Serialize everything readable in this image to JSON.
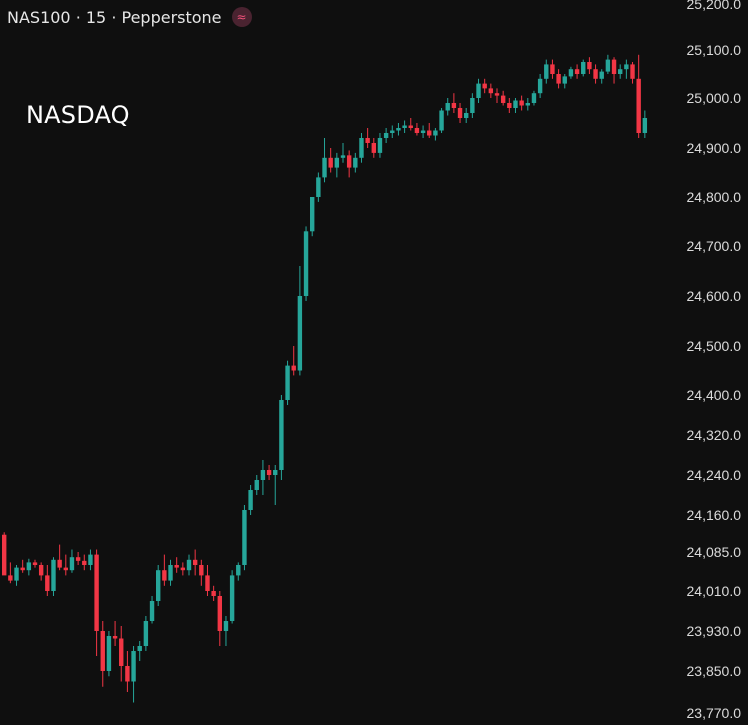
{
  "header": {
    "symbol_title": "NAS100 · 15 · Pepperstone",
    "badge_glyph": "≈"
  },
  "watermark": "NASDAQ",
  "colors": {
    "up": "#26a69a",
    "down": "#f23645",
    "background": "#0f0f0f",
    "axis_text": "#dbdbdb"
  },
  "chart_data": {
    "type": "candlestick",
    "title": "NAS100 · 15 · Pepperstone",
    "annotation": "NASDAQ",
    "y_axis": {
      "position": "right",
      "ticks": [
        "25,200.0",
        "25,100.0",
        "25,000.0",
        "24,900.0",
        "24,800.0",
        "24,700.0",
        "24,600.0",
        "24,500.0",
        "24,400.0",
        "24,320.0",
        "24,240.0",
        "24,160.0",
        "24,085.0",
        "24,010.0",
        "23,930.0",
        "23,850.0",
        "23,770.0"
      ],
      "tick_values": [
        25200,
        25100,
        25000,
        24900,
        24800,
        24700,
        24600,
        24500,
        24400,
        24320,
        24240,
        24160,
        24085,
        24010,
        23930,
        23850,
        23770
      ],
      "scale": "log"
    },
    "grid": false,
    "candles": [
      [
        24120,
        24125,
        24045,
        24040
      ],
      [
        24040,
        24065,
        24025,
        24030
      ],
      [
        24030,
        24060,
        24020,
        24055
      ],
      [
        24055,
        24070,
        24045,
        24050
      ],
      [
        24050,
        24072,
        24040,
        24065
      ],
      [
        24065,
        24070,
        24055,
        24060
      ],
      [
        24060,
        24065,
        24030,
        24040
      ],
      [
        24040,
        24060,
        24000,
        24010
      ],
      [
        24010,
        24075,
        24000,
        24070
      ],
      [
        24070,
        24100,
        24050,
        24055
      ],
      [
        24055,
        24080,
        24040,
        24050
      ],
      [
        24050,
        24090,
        24045,
        24075
      ],
      [
        24075,
        24085,
        24060,
        24068
      ],
      [
        24068,
        24080,
        24050,
        24060
      ],
      [
        24060,
        24090,
        24050,
        24080
      ],
      [
        24080,
        24090,
        23880,
        23930
      ],
      [
        23930,
        23950,
        23820,
        23850
      ],
      [
        23850,
        23930,
        23840,
        23920
      ],
      [
        23920,
        23950,
        23900,
        23915
      ],
      [
        23915,
        23940,
        23830,
        23860
      ],
      [
        23860,
        23890,
        23810,
        23830
      ],
      [
        23830,
        23900,
        23790,
        23890
      ],
      [
        23890,
        23910,
        23870,
        23900
      ],
      [
        23900,
        23960,
        23890,
        23950
      ],
      [
        23950,
        24000,
        23945,
        23990
      ],
      [
        23990,
        24060,
        23980,
        24050
      ],
      [
        24050,
        24080,
        24020,
        24030
      ],
      [
        24030,
        24070,
        24020,
        24060
      ],
      [
        24060,
        24075,
        24045,
        24055
      ],
      [
        24055,
        24065,
        24040,
        24050
      ],
      [
        24050,
        24080,
        24040,
        24070
      ],
      [
        24070,
        24090,
        24040,
        24060
      ],
      [
        24060,
        24070,
        24020,
        24040
      ],
      [
        24040,
        24060,
        24000,
        24010
      ],
      [
        24010,
        24020,
        23990,
        24000
      ],
      [
        24000,
        24010,
        23900,
        23930
      ],
      [
        23930,
        23960,
        23900,
        23950
      ],
      [
        23950,
        24050,
        23945,
        24040
      ],
      [
        24040,
        24065,
        24030,
        24060
      ],
      [
        24060,
        24180,
        24050,
        24170
      ],
      [
        24170,
        24220,
        24160,
        24210
      ],
      [
        24210,
        24240,
        24200,
        24230
      ],
      [
        24230,
        24270,
        24200,
        24250
      ],
      [
        24250,
        24260,
        24230,
        24240
      ],
      [
        24240,
        24260,
        24180,
        24250
      ],
      [
        24250,
        24400,
        24230,
        24390
      ],
      [
        24390,
        24470,
        24380,
        24460
      ],
      [
        24460,
        24500,
        24440,
        24450
      ],
      [
        24450,
        24660,
        24440,
        24600
      ],
      [
        24600,
        24740,
        24590,
        24730
      ],
      [
        24730,
        24800,
        24720,
        24800
      ],
      [
        24800,
        24850,
        24790,
        24840
      ],
      [
        24840,
        24920,
        24830,
        24880
      ],
      [
        24880,
        24900,
        24850,
        24860
      ],
      [
        24860,
        24890,
        24840,
        24880
      ],
      [
        24880,
        24910,
        24870,
        24885
      ],
      [
        24885,
        24895,
        24840,
        24860
      ],
      [
        24860,
        24890,
        24850,
        24880
      ],
      [
        24880,
        24930,
        24870,
        24920
      ],
      [
        24920,
        24940,
        24900,
        24910
      ],
      [
        24910,
        24920,
        24880,
        24890
      ],
      [
        24890,
        24930,
        24880,
        24920
      ],
      [
        24920,
        24940,
        24910,
        24930
      ],
      [
        24930,
        24945,
        24920,
        24935
      ],
      [
        24935,
        24950,
        24925,
        24940
      ],
      [
        24940,
        24955,
        24930,
        24945
      ],
      [
        24945,
        24960,
        24935,
        24940
      ],
      [
        24940,
        24950,
        24925,
        24930
      ],
      [
        24930,
        24945,
        24920,
        24935
      ],
      [
        24935,
        24950,
        24920,
        24925
      ],
      [
        24925,
        24940,
        24915,
        24935
      ],
      [
        24935,
        24980,
        24930,
        24975
      ],
      [
        24975,
        25000,
        24965,
        24990
      ],
      [
        24990,
        25010,
        24970,
        24980
      ],
      [
        24980,
        24990,
        24950,
        24960
      ],
      [
        24960,
        24980,
        24950,
        24970
      ],
      [
        24970,
        25010,
        24960,
        25000
      ],
      [
        25000,
        25040,
        24990,
        25030
      ],
      [
        25030,
        25040,
        25010,
        25020
      ],
      [
        25020,
        25030,
        25000,
        25010
      ],
      [
        25010,
        25020,
        24990,
        25005
      ],
      [
        25005,
        25015,
        24985,
        24990
      ],
      [
        24990,
        25000,
        24970,
        24980
      ],
      [
        24980,
        25000,
        24970,
        24995
      ],
      [
        24995,
        25005,
        24975,
        24985
      ],
      [
        24985,
        25000,
        24975,
        24990
      ],
      [
        24990,
        25015,
        24985,
        25010
      ],
      [
        25010,
        25050,
        25000,
        25040
      ],
      [
        25040,
        25080,
        25030,
        25070
      ],
      [
        25070,
        25080,
        25040,
        25050
      ],
      [
        25050,
        25060,
        25020,
        25030
      ],
      [
        25030,
        25050,
        25020,
        25045
      ],
      [
        25045,
        25065,
        25040,
        25060
      ],
      [
        25060,
        25070,
        25040,
        25050
      ],
      [
        25050,
        25080,
        25045,
        25075
      ],
      [
        25075,
        25085,
        25050,
        25060
      ],
      [
        25060,
        25070,
        25030,
        25040
      ],
      [
        25040,
        25060,
        25030,
        25055
      ],
      [
        25055,
        25090,
        25050,
        25080
      ],
      [
        25080,
        25085,
        25030,
        25050
      ],
      [
        25050,
        25070,
        25040,
        25060
      ],
      [
        25060,
        25080,
        25040,
        25070
      ],
      [
        25070,
        25075,
        25030,
        25040
      ],
      [
        25040,
        25090,
        24920,
        24930
      ],
      [
        24930,
        24975,
        24920,
        24960
      ]
    ]
  }
}
